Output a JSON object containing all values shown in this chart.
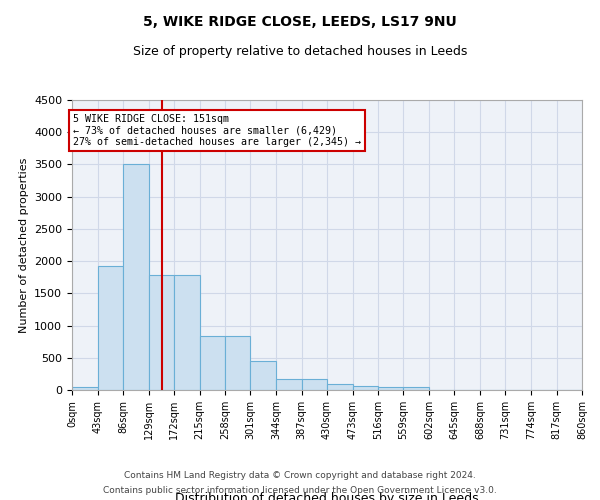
{
  "title1": "5, WIKE RIDGE CLOSE, LEEDS, LS17 9NU",
  "title2": "Size of property relative to detached houses in Leeds",
  "xlabel": "Distribution of detached houses by size in Leeds",
  "ylabel": "Number of detached properties",
  "bin_edges": [
    0,
    43,
    86,
    129,
    172,
    215,
    258,
    301,
    344,
    387,
    430,
    473,
    516,
    559,
    602,
    645,
    688,
    731,
    774,
    817,
    860
  ],
  "bar_heights": [
    50,
    1920,
    3500,
    1790,
    1790,
    840,
    840,
    450,
    170,
    170,
    90,
    60,
    50,
    50,
    0,
    0,
    0,
    0,
    0,
    0
  ],
  "bar_color": "#cce0f0",
  "bar_edge_color": "#6aafd6",
  "property_size": 151,
  "annotation_text": "5 WIKE RIDGE CLOSE: 151sqm\n← 73% of detached houses are smaller (6,429)\n27% of semi-detached houses are larger (2,345) →",
  "annotation_box_color": "#ffffff",
  "annotation_box_edge": "#cc0000",
  "vline_color": "#cc0000",
  "grid_color": "#d0d8e8",
  "background_color": "#eef2f8",
  "footnote1": "Contains HM Land Registry data © Crown copyright and database right 2024.",
  "footnote2": "Contains public sector information licensed under the Open Government Licence v3.0.",
  "ylim": [
    0,
    4500
  ],
  "yticks": [
    0,
    500,
    1000,
    1500,
    2000,
    2500,
    3000,
    3500,
    4000,
    4500
  ],
  "tick_labels": [
    "0sqm",
    "43sqm",
    "86sqm",
    "129sqm",
    "172sqm",
    "215sqm",
    "258sqm",
    "301sqm",
    "344sqm",
    "387sqm",
    "430sqm",
    "473sqm",
    "516sqm",
    "559sqm",
    "602sqm",
    "645sqm",
    "688sqm",
    "731sqm",
    "774sqm",
    "817sqm",
    "860sqm"
  ]
}
